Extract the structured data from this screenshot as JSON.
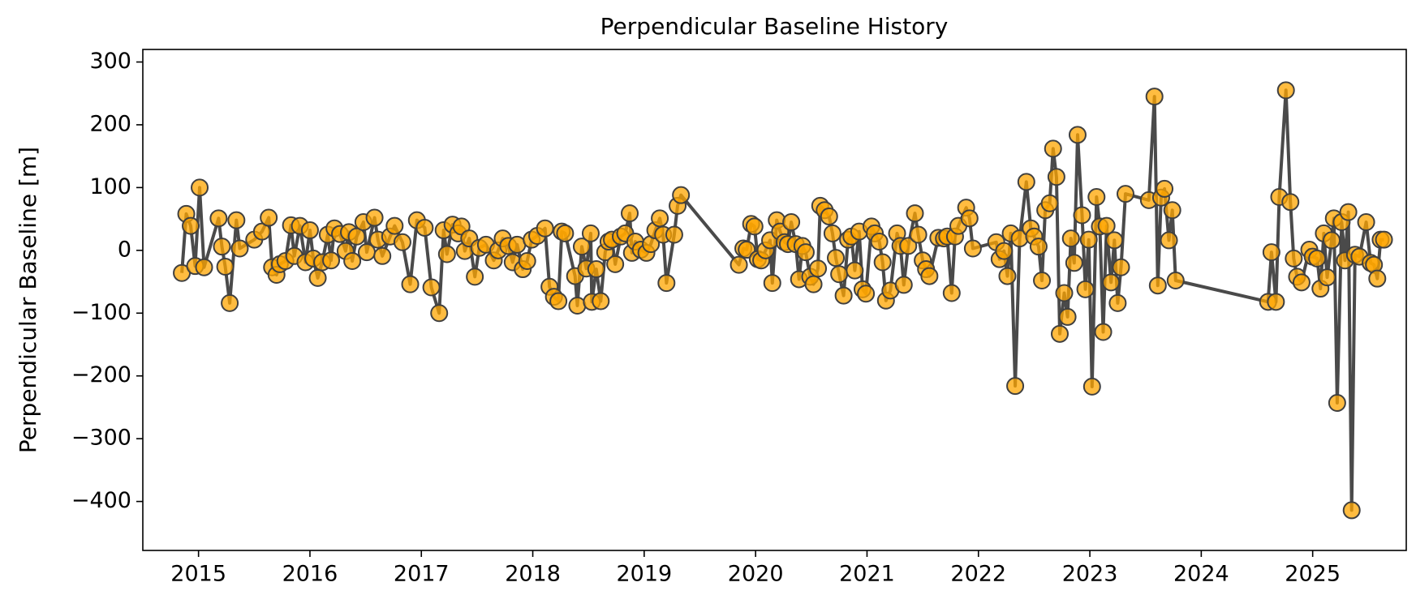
{
  "chart_data": {
    "type": "line",
    "title": "Perpendicular Baseline History",
    "ylabel": "Perpendicular Baseline [m]",
    "color": "#ffa500",
    "line_color": "#404040",
    "xlim": [
      2014.5,
      2025.84
    ],
    "ylim": [
      -478,
      320
    ],
    "xticks": [
      2015,
      2016,
      2017,
      2018,
      2019,
      2020,
      2021,
      2022,
      2023,
      2024,
      2025
    ],
    "yticks": [
      {
        "value": -400,
        "label": "−400"
      },
      {
        "value": -300,
        "label": "−300"
      },
      {
        "value": -200,
        "label": "−200"
      },
      {
        "value": -100,
        "label": "−100"
      },
      0,
      100,
      200,
      300
    ],
    "x": [
      2014.85,
      2014.89,
      2014.93,
      2014.97,
      2015.01,
      2015.05,
      2015.18,
      2015.21,
      2015.24,
      2015.28,
      2015.34,
      2015.37,
      2015.5,
      2015.57,
      2015.63,
      2015.66,
      2015.7,
      2015.73,
      2015.78,
      2015.83,
      2015.86,
      2015.91,
      2015.96,
      2016.0,
      2016.03,
      2016.07,
      2016.11,
      2016.16,
      2016.19,
      2016.22,
      2016.27,
      2016.32,
      2016.35,
      2016.38,
      2016.42,
      2016.48,
      2016.51,
      2016.58,
      2016.61,
      2016.65,
      2016.72,
      2016.76,
      2016.83,
      2016.9,
      2016.96,
      2017.03,
      2017.09,
      2017.16,
      2017.2,
      2017.23,
      2017.28,
      2017.33,
      2017.36,
      2017.39,
      2017.43,
      2017.48,
      2017.52,
      2017.58,
      2017.65,
      2017.69,
      2017.73,
      2017.78,
      2017.82,
      2017.86,
      2017.91,
      2017.95,
      2017.99,
      2018.04,
      2018.11,
      2018.15,
      2018.19,
      2018.23,
      2018.26,
      2018.29,
      2018.38,
      2018.4,
      2018.44,
      2018.48,
      2018.52,
      2018.53,
      2018.57,
      2018.61,
      2018.65,
      2018.68,
      2018.71,
      2018.74,
      2018.79,
      2018.83,
      2018.87,
      2018.89,
      2018.92,
      2018.97,
      2019.02,
      2019.06,
      2019.1,
      2019.14,
      2019.17,
      2019.2,
      2019.27,
      2019.3,
      2019.33,
      2019.85,
      2019.89,
      2019.92,
      2019.96,
      2019.99,
      2020.02,
      2020.05,
      2020.09,
      2020.13,
      2020.15,
      2020.19,
      2020.22,
      2020.26,
      2020.29,
      2020.32,
      2020.36,
      2020.39,
      2020.42,
      2020.45,
      2020.49,
      2020.52,
      2020.56,
      2020.58,
      2020.62,
      2020.66,
      2020.69,
      2020.72,
      2020.75,
      2020.79,
      2020.83,
      2020.86,
      2020.89,
      2020.93,
      2020.96,
      2020.99,
      2021.04,
      2021.07,
      2021.11,
      2021.14,
      2021.17,
      2021.21,
      2021.27,
      2021.3,
      2021.33,
      2021.37,
      2021.43,
      2021.46,
      2021.5,
      2021.53,
      2021.56,
      2021.64,
      2021.69,
      2021.72,
      2021.76,
      2021.79,
      2021.82,
      2021.89,
      2021.92,
      2021.95,
      2022.16,
      2022.19,
      2022.23,
      2022.26,
      2022.29,
      2022.33,
      2022.37,
      2022.43,
      2022.47,
      2022.5,
      2022.54,
      2022.57,
      2022.6,
      2022.64,
      2022.67,
      2022.7,
      2022.73,
      2022.77,
      2022.8,
      2022.83,
      2022.86,
      2022.89,
      2022.93,
      2022.96,
      2022.99,
      2023.02,
      2023.06,
      2023.09,
      2023.12,
      2023.15,
      2023.19,
      2023.22,
      2023.25,
      2023.28,
      2023.32,
      2023.53,
      2023.58,
      2023.61,
      2023.64,
      2023.67,
      2023.71,
      2023.74,
      2023.77,
      2024.6,
      2024.63,
      2024.67,
      2024.7,
      2024.76,
      2024.8,
      2024.83,
      2024.86,
      2024.9,
      2024.97,
      2025.0,
      2025.04,
      2025.07,
      2025.1,
      2025.13,
      2025.17,
      2025.19,
      2025.22,
      2025.26,
      2025.29,
      2025.32,
      2025.35,
      2025.38,
      2025.42,
      2025.48,
      2025.52,
      2025.55,
      2025.58,
      2025.61,
      2025.64
    ],
    "values": [
      -36,
      58,
      39,
      -25,
      100,
      -27,
      51,
      6,
      -26,
      -84,
      48,
      3,
      17,
      30,
      52,
      -27,
      -39,
      -22,
      -17,
      40,
      -9,
      39,
      -19,
      32,
      -13,
      -44,
      -19,
      25,
      -16,
      35,
      26,
      -1,
      29,
      -17,
      22,
      45,
      -3,
      52,
      17,
      -9,
      22,
      39,
      13,
      -54,
      48,
      36,
      -59,
      -100,
      32,
      -6,
      41,
      27,
      38,
      -1,
      19,
      -42,
      4,
      9,
      -16,
      0,
      19,
      7,
      -19,
      9,
      -30,
      -17,
      17,
      23,
      35,
      -58,
      -74,
      -81,
      30,
      27,
      -41,
      -88,
      6,
      -29,
      27,
      -82,
      -30,
      -81,
      -3,
      14,
      17,
      -22,
      22,
      27,
      59,
      -4,
      14,
      1,
      -4,
      10,
      32,
      51,
      25,
      -52,
      25,
      71,
      88,
      -23,
      3,
      1,
      42,
      38,
      -14,
      -16,
      0,
      16,
      -52,
      48,
      30,
      13,
      10,
      45,
      10,
      -46,
      7,
      -3,
      -42,
      -54,
      -29,
      71,
      64,
      54,
      27,
      -12,
      -38,
      -72,
      17,
      22,
      -32,
      30,
      -62,
      -69,
      38,
      27,
      14,
      -19,
      -80,
      -64,
      27,
      7,
      -55,
      7,
      59,
      25,
      -16,
      -30,
      -41,
      20,
      19,
      22,
      -68,
      22,
      39,
      68,
      51,
      3,
      13,
      -14,
      -1,
      -41,
      27,
      -216,
      19,
      109,
      35,
      22,
      6,
      -48,
      64,
      75,
      162,
      117,
      -133,
      -68,
      -106,
      19,
      -20,
      184,
      56,
      -62,
      17,
      -217,
      85,
      38,
      -130,
      39,
      -51,
      16,
      -84,
      -27,
      90,
      80,
      245,
      -56,
      84,
      98,
      16,
      64,
      -48,
      -82,
      -3,
      -82,
      85,
      255,
      77,
      -13,
      -42,
      -51,
      1,
      -10,
      -13,
      -61,
      27,
      -43,
      16,
      51,
      -243,
      45,
      -16,
      61,
      -414,
      -7,
      -10,
      45,
      -20,
      -23,
      -45,
      17,
      17
    ]
  }
}
